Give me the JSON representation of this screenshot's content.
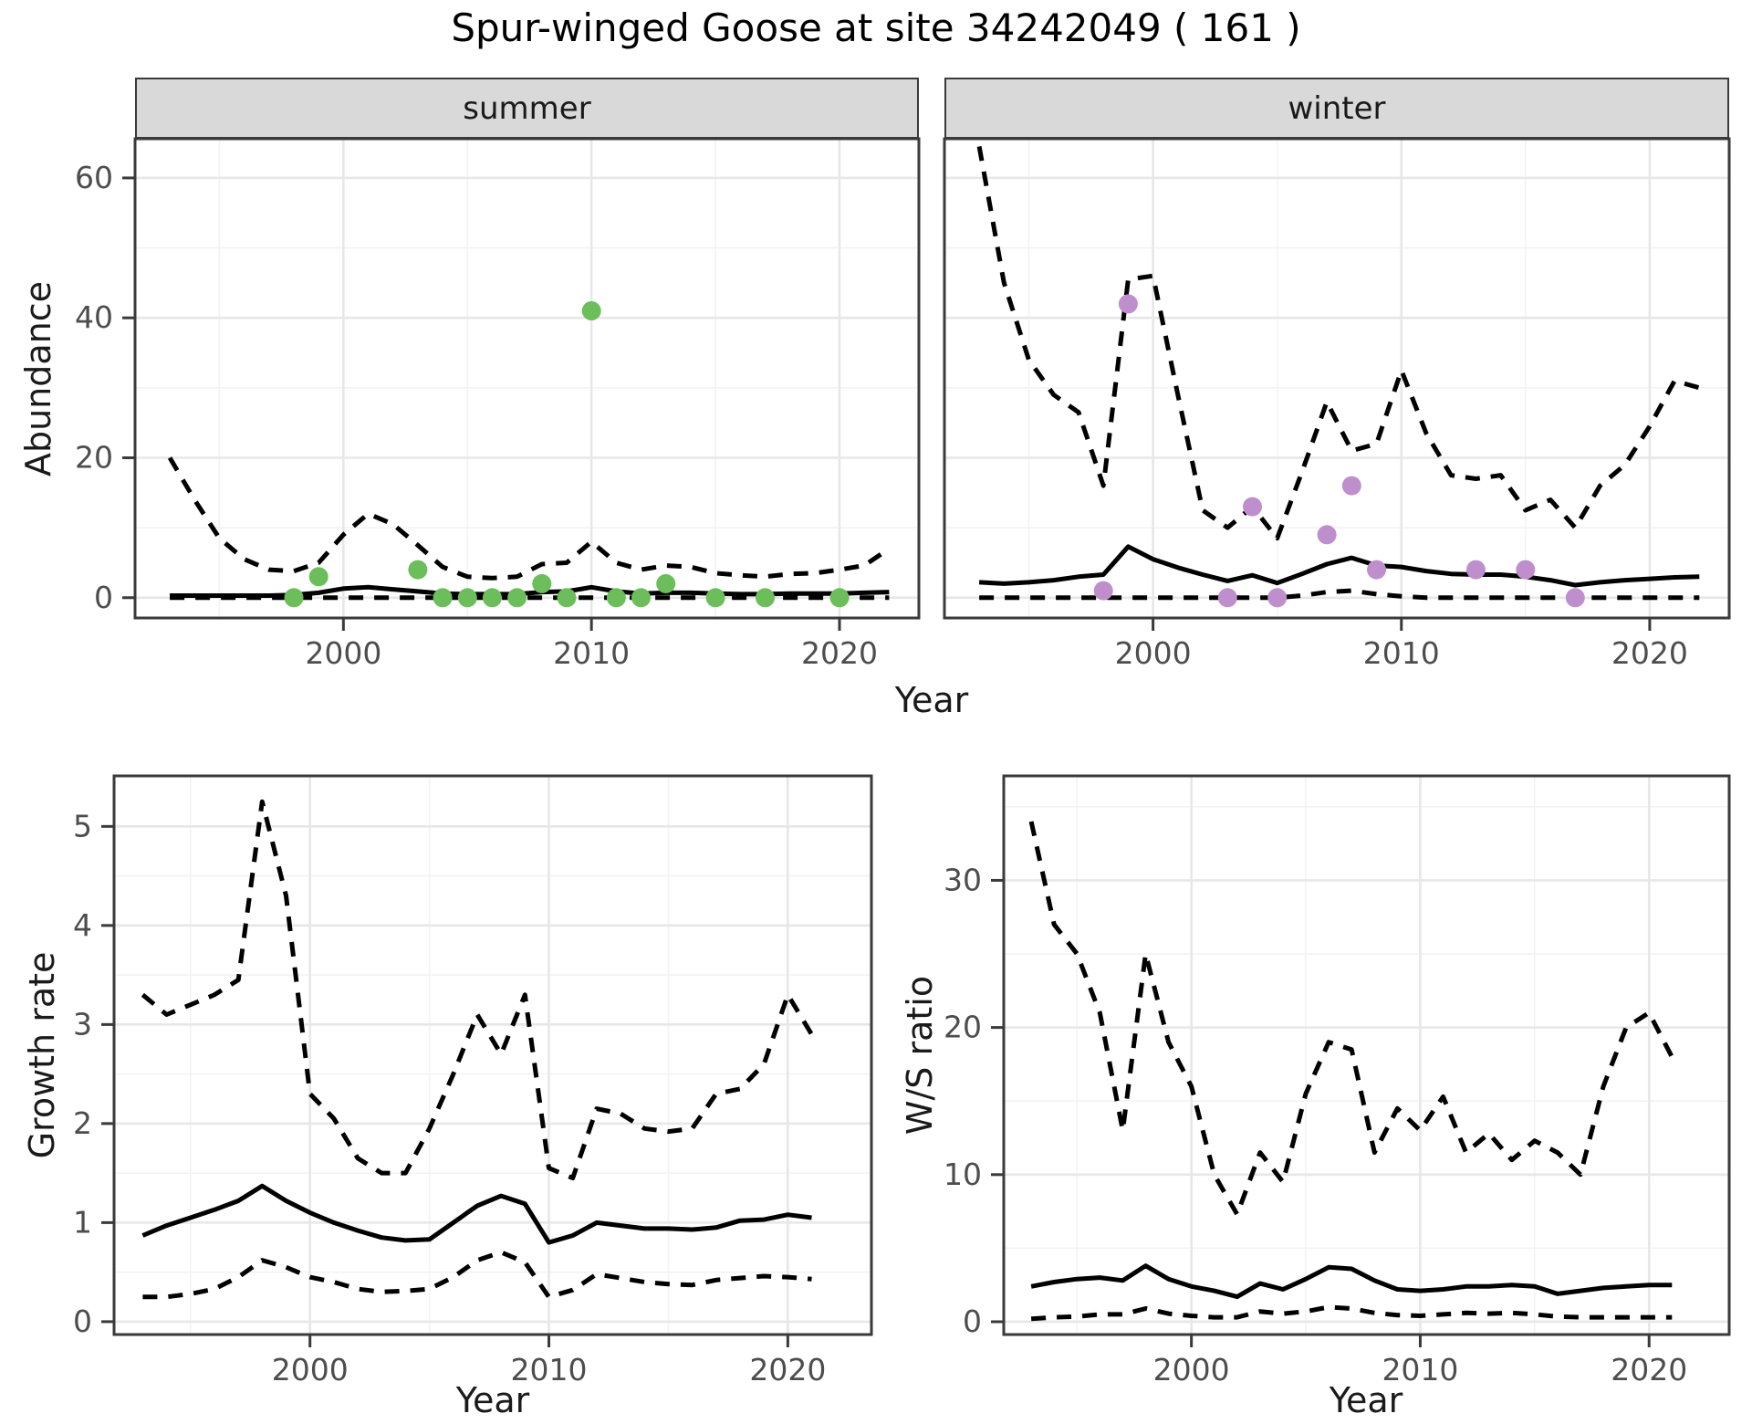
{
  "title": "Spur-winged Goose at site 34242049 ( 161 )",
  "labels": {
    "y_abundance": "Abundance",
    "y_growth": "Growth rate",
    "y_ws": "W/S ratio",
    "x_year": "Year"
  },
  "facets": {
    "summer": "summer",
    "winter": "winter"
  },
  "colors": {
    "points_summer": "#6CBE5B",
    "points_winter": "#BE8FCC",
    "line": "#000000",
    "grid_major": "#E7E7E7",
    "grid_minor": "#F3F3F3",
    "panel_border": "#3A3A3A",
    "strip_bg": "#D9D9D9",
    "axis_text": "#4D4D4D",
    "title_text": "#000000"
  },
  "chart_data": [
    {
      "id": "abundance_summer",
      "type": "line",
      "facet_label": "summer",
      "ylabel": "Abundance",
      "xlabel": "Year",
      "x": [
        1993,
        1994,
        1995,
        1996,
        1997,
        1998,
        1999,
        2000,
        2001,
        2002,
        2003,
        2004,
        2005,
        2006,
        2007,
        2008,
        2009,
        2010,
        2011,
        2012,
        2013,
        2014,
        2015,
        2016,
        2017,
        2018,
        2019,
        2020,
        2021,
        2022
      ],
      "series": [
        {
          "name": "upper-ci",
          "style": "dashed",
          "values": [
            20,
            14,
            8.5,
            5.5,
            4,
            3.8,
            5,
            9,
            12,
            10.5,
            7.5,
            4.4,
            3,
            2.8,
            3,
            4.8,
            5,
            8,
            5,
            4,
            4.6,
            4.4,
            3.5,
            3.2,
            3,
            3.4,
            3.5,
            4,
            4.6,
            7
          ]
        },
        {
          "name": "median",
          "style": "solid",
          "values": [
            0.3,
            0.3,
            0.3,
            0.3,
            0.3,
            0.4,
            0.7,
            1.3,
            1.5,
            1.2,
            0.9,
            0.6,
            0.5,
            0.5,
            0.5,
            0.8,
            0.9,
            1.5,
            0.9,
            0.6,
            0.7,
            0.7,
            0.6,
            0.5,
            0.5,
            0.6,
            0.6,
            0.6,
            0.7,
            0.8
          ]
        },
        {
          "name": "lower-ci",
          "style": "dashed",
          "values": [
            0,
            0,
            0,
            0,
            0,
            0,
            0,
            0,
            0,
            0,
            0,
            0,
            0,
            0,
            0,
            0,
            0,
            0,
            0,
            0,
            0,
            0,
            0,
            0,
            0,
            0,
            0,
            0,
            0,
            0
          ]
        }
      ],
      "points": {
        "name": "observed-count",
        "color_key": "points_summer",
        "x": [
          1998,
          1999,
          2003,
          2004,
          2005,
          2006,
          2007,
          2008,
          2009,
          2010,
          2011,
          2012,
          2013,
          2015,
          2017,
          2020
        ],
        "y": [
          0,
          3,
          4,
          0,
          0,
          0,
          0,
          2,
          0,
          41,
          0,
          0,
          2,
          0,
          0,
          0
        ]
      },
      "xlim": [
        1991.6,
        2023.2
      ],
      "ylim": [
        -2.9,
        65.6
      ],
      "x_major": [
        2000,
        2010,
        2020
      ],
      "x_minor": [
        1995,
        2005,
        2015
      ],
      "y_major": [
        0,
        20,
        40,
        60
      ],
      "y_minor": [
        10,
        30,
        50
      ]
    },
    {
      "id": "abundance_winter",
      "type": "line",
      "facet_label": "winter",
      "ylabel": "Abundance",
      "xlabel": "Year",
      "x": [
        1993,
        1994,
        1995,
        1996,
        1997,
        1998,
        1999,
        2000,
        2001,
        2002,
        2003,
        2004,
        2005,
        2006,
        2007,
        2008,
        2009,
        2010,
        2011,
        2012,
        2013,
        2014,
        2015,
        2016,
        2017,
        2018,
        2019,
        2020,
        2021,
        2022
      ],
      "series": [
        {
          "name": "upper-ci",
          "style": "dashed",
          "values": [
            64.5,
            45,
            34,
            29,
            26.5,
            16,
            45.5,
            46,
            29,
            12.5,
            10,
            13,
            8.5,
            18,
            28,
            21,
            22,
            32.5,
            23.5,
            17.5,
            17,
            17.5,
            12.5,
            14,
            10,
            16,
            19,
            24.5,
            31,
            30
          ]
        },
        {
          "name": "median",
          "style": "solid",
          "values": [
            2.2,
            2,
            2.2,
            2.5,
            3,
            3.3,
            7.3,
            5.5,
            4.3,
            3.3,
            2.4,
            3.2,
            2.1,
            3.4,
            4.8,
            5.7,
            4.6,
            4.4,
            3.8,
            3.4,
            3.3,
            3.3,
            3,
            2.5,
            1.8,
            2.2,
            2.5,
            2.7,
            2.9,
            3
          ]
        },
        {
          "name": "lower-ci",
          "style": "dashed",
          "values": [
            0,
            0,
            0,
            0,
            0,
            0,
            0,
            0,
            0,
            0,
            0,
            0,
            0,
            0.3,
            0.8,
            1,
            0.5,
            0.2,
            0,
            0,
            0,
            0,
            0,
            0,
            0,
            0,
            0,
            0,
            0,
            0
          ]
        }
      ],
      "points": {
        "name": "observed-count",
        "color_key": "points_winter",
        "x": [
          1998,
          1999,
          2003,
          2004,
          2005,
          2007,
          2008,
          2009,
          2013,
          2015,
          2017
        ],
        "y": [
          1,
          42,
          0,
          13,
          0,
          9,
          16,
          4,
          4,
          4,
          0
        ]
      },
      "xlim": [
        1991.6,
        2023.2
      ],
      "ylim": [
        -2.9,
        65.6
      ],
      "x_major": [
        2000,
        2010,
        2020
      ],
      "x_minor": [
        1995,
        2005,
        2015
      ],
      "y_major": [
        0,
        20,
        40,
        60
      ],
      "y_minor": [
        10,
        30,
        50
      ]
    },
    {
      "id": "growth_rate",
      "type": "line",
      "facet_label": "",
      "ylabel": "Growth rate",
      "xlabel": "Year",
      "x": [
        1993,
        1994,
        1995,
        1996,
        1997,
        1998,
        1999,
        2000,
        2001,
        2002,
        2003,
        2004,
        2005,
        2006,
        2007,
        2008,
        2009,
        2010,
        2011,
        2012,
        2013,
        2014,
        2015,
        2016,
        2017,
        2018,
        2019,
        2020,
        2021
      ],
      "series": [
        {
          "name": "upper-ci",
          "style": "dashed",
          "values": [
            3.3,
            3.1,
            3.2,
            3.3,
            3.45,
            5.25,
            4.3,
            2.3,
            2.05,
            1.65,
            1.5,
            1.5,
            1.95,
            2.5,
            3.1,
            2.7,
            3.3,
            1.55,
            1.45,
            2.15,
            2.1,
            1.95,
            1.92,
            1.95,
            2.3,
            2.35,
            2.6,
            3.3,
            2.9
          ]
        },
        {
          "name": "median",
          "style": "solid",
          "values": [
            0.87,
            0.97,
            1.05,
            1.13,
            1.22,
            1.37,
            1.22,
            1.1,
            1,
            0.92,
            0.85,
            0.82,
            0.83,
            1,
            1.17,
            1.27,
            1.19,
            0.8,
            0.87,
            1,
            0.97,
            0.94,
            0.94,
            0.93,
            0.95,
            1.02,
            1.03,
            1.08,
            1.05
          ]
        },
        {
          "name": "lower-ci",
          "style": "dashed",
          "values": [
            0.25,
            0.25,
            0.28,
            0.33,
            0.45,
            0.62,
            0.55,
            0.45,
            0.4,
            0.33,
            0.3,
            0.31,
            0.33,
            0.45,
            0.62,
            0.7,
            0.6,
            0.25,
            0.32,
            0.48,
            0.44,
            0.4,
            0.38,
            0.37,
            0.42,
            0.44,
            0.46,
            0.45,
            0.43
          ]
        }
      ],
      "points": null,
      "xlim": [
        1991.8,
        2023.5
      ],
      "ylim": [
        -0.13,
        5.51
      ],
      "x_major": [
        2000,
        2010,
        2020
      ],
      "x_minor": [
        1995,
        2005,
        2015
      ],
      "y_major": [
        0,
        1,
        2,
        3,
        4,
        5
      ],
      "y_minor": [
        0.5,
        1.5,
        2.5,
        3.5,
        4.5
      ]
    },
    {
      "id": "ws_ratio",
      "type": "line",
      "facet_label": "",
      "ylabel": "W/S ratio",
      "xlabel": "Year",
      "x": [
        1993,
        1994,
        1995,
        1996,
        1997,
        1998,
        1999,
        2000,
        2001,
        2002,
        2003,
        2004,
        2005,
        2006,
        2007,
        2008,
        2009,
        2010,
        2011,
        2012,
        2013,
        2014,
        2015,
        2016,
        2017,
        2018,
        2019,
        2020,
        2021
      ],
      "series": [
        {
          "name": "upper-ci",
          "style": "dashed",
          "values": [
            34,
            27,
            25,
            21,
            13,
            25,
            19,
            16,
            10,
            7.3,
            11.5,
            9.5,
            15.5,
            19,
            18.5,
            11.5,
            14.5,
            13,
            15.3,
            11.5,
            12.8,
            11,
            12.3,
            11.5,
            10,
            16,
            20,
            21,
            18
          ]
        },
        {
          "name": "median",
          "style": "solid",
          "values": [
            2.4,
            2.7,
            2.9,
            3,
            2.8,
            3.8,
            2.9,
            2.4,
            2.1,
            1.7,
            2.6,
            2.2,
            2.9,
            3.7,
            3.6,
            2.8,
            2.2,
            2.1,
            2.2,
            2.4,
            2.4,
            2.5,
            2.4,
            1.9,
            2.1,
            2.3,
            2.4,
            2.5,
            2.5
          ]
        },
        {
          "name": "lower-ci",
          "style": "dashed",
          "values": [
            0.2,
            0.3,
            0.35,
            0.5,
            0.5,
            0.9,
            0.55,
            0.4,
            0.3,
            0.3,
            0.7,
            0.55,
            0.7,
            1,
            0.9,
            0.6,
            0.45,
            0.4,
            0.5,
            0.6,
            0.55,
            0.6,
            0.5,
            0.35,
            0.3,
            0.3,
            0.3,
            0.3,
            0.3
          ]
        }
      ],
      "points": null,
      "xlim": [
        1991.8,
        2023.5
      ],
      "ylim": [
        -0.87,
        37.1
      ],
      "x_major": [
        2000,
        2010,
        2020
      ],
      "x_minor": [
        1995,
        2005,
        2015
      ],
      "y_major": [
        0,
        10,
        20,
        30
      ],
      "y_minor": [
        5,
        15,
        25,
        35
      ]
    }
  ]
}
